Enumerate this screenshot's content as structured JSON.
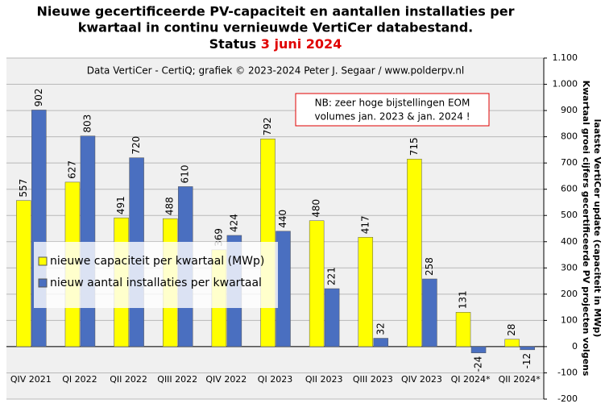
{
  "chart_data": {
    "type": "bar",
    "title": [
      "Nieuwe gecertificeerde PV-capaciteit en aantallen installaties per",
      "kwartaal in continu vernieuwde VertiCer databestand."
    ],
    "status_label": "Status",
    "status_date": "3 juni 2024",
    "subtitle": "Data VertiCer - CertiQ; grafiek © 2023-2024 Peter J. Segaar / www.polderpv.nl",
    "annotation": [
      "NB: zeer hoge bijstellingen EOM",
      "volumes jan. 2023 & jan. 2024 !"
    ],
    "y_axis_label": [
      "Kwartaal groei cijfers gecertificeerde PV projecten volgens",
      "laatste VertiCer update (capaciteit in MWp)"
    ],
    "categories": [
      "QIV 2021",
      "QI 2022",
      "QII 2022",
      "QIII 2022",
      "QIV 2022",
      "QI 2023",
      "QII 2023",
      "QIII 2023",
      "QIV 2023",
      "QI 2024*",
      "QII 2024*"
    ],
    "series": [
      {
        "name": "nieuwe capaciteit per kwartaal (MWp)",
        "color": "#ffff00",
        "values": [
          557,
          627,
          491,
          488,
          369,
          792,
          480,
          417,
          715,
          131,
          28
        ]
      },
      {
        "name": "nieuw aantal installaties per kwartaal",
        "color": "#4a6fc0",
        "values": [
          902,
          803,
          720,
          610,
          424,
          440,
          221,
          32,
          258,
          -24,
          -12
        ]
      }
    ],
    "ylim": [
      -200,
      1100
    ],
    "yticks": [
      -200,
      -100,
      0,
      100,
      200,
      300,
      400,
      500,
      600,
      700,
      800,
      900,
      {
        "value": 1000,
        "label": "1.000"
      },
      {
        "value": 1100,
        "label": "1.100"
      }
    ],
    "grid": true,
    "legend": "lower left"
  }
}
